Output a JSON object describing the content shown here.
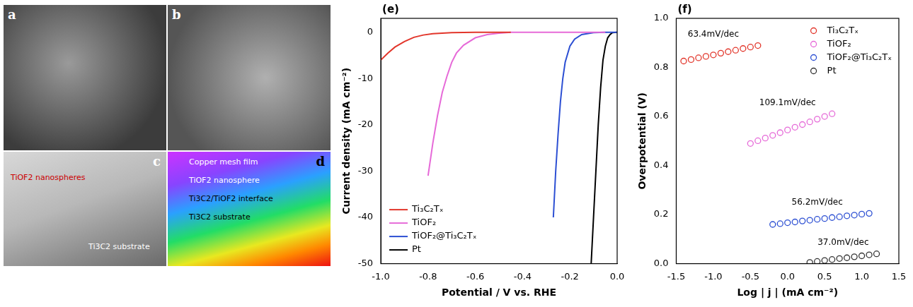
{
  "images": [
    {
      "letter": "a",
      "labels": []
    },
    {
      "letter": "b",
      "labels": []
    },
    {
      "letter": "c",
      "labels": [
        "TiOF2 nanospheres",
        "Ti3C2 substrate"
      ]
    },
    {
      "letter": "d",
      "labels": [
        "Copper mesh film",
        "TiOF2 nanosphere",
        "Ti3C2/TiOF2 interface",
        "Ti3C2 substrate"
      ]
    }
  ],
  "chart_data": [
    {
      "type": "line",
      "title": "(e)",
      "x_label": "Potential / V vs. RHE",
      "y_label": "Current density (mA cm⁻²)",
      "xlim": [
        -1.0,
        0.0
      ],
      "xticks": [
        {
          "value": -1.0,
          "label": "-1.0"
        },
        {
          "value": -0.8,
          "label": "-0.8"
        },
        {
          "value": -0.6,
          "label": "-0.6"
        },
        {
          "value": -0.4,
          "label": "-0.4"
        },
        {
          "value": -0.2,
          "label": "-0.2"
        },
        {
          "value": 0.0,
          "label": "0.0"
        }
      ],
      "ylim": [
        -50,
        3
      ],
      "yticks": [
        -50,
        -40,
        -30,
        -20,
        -10,
        0
      ],
      "grid": false,
      "legend": "lower left",
      "series": [
        {
          "name": "Ti₃C₂Tₓ",
          "color": "#e2362b",
          "line_style": "solid",
          "x": [
            -1.0,
            -0.97,
            -0.94,
            -0.9,
            -0.86,
            -0.82,
            -0.78,
            -0.7,
            -0.6,
            -0.45
          ],
          "values": [
            -6,
            -4.5,
            -3.2,
            -2,
            -1.1,
            -0.6,
            -0.3,
            -0.1,
            0,
            0
          ]
        },
        {
          "name": "TiOF₂",
          "color": "#e66ad8",
          "line_style": "solid",
          "x": [
            -0.8,
            -0.78,
            -0.76,
            -0.74,
            -0.72,
            -0.7,
            -0.68,
            -0.65,
            -0.6,
            -0.55,
            -0.5,
            -0.45,
            -0.2,
            -0.05
          ],
          "values": [
            -31,
            -24,
            -18,
            -13,
            -9.5,
            -6.5,
            -4.5,
            -2.8,
            -1.2,
            -0.5,
            -0.2,
            0,
            0,
            0
          ]
        },
        {
          "name": "TiOF₂@Ti₃C₂Tₓ",
          "color": "#2c4fd3",
          "line_style": "solid",
          "x": [
            -0.27,
            -0.26,
            -0.25,
            -0.24,
            -0.23,
            -0.22,
            -0.2,
            -0.18,
            -0.15,
            -0.1,
            -0.05,
            0.0
          ],
          "values": [
            -40,
            -30,
            -22,
            -15,
            -10,
            -6.5,
            -3,
            -1.5,
            -0.5,
            -0.1,
            0,
            0
          ]
        },
        {
          "name": "Pt",
          "color": "#000000",
          "line_style": "solid",
          "x": [
            -0.11,
            -0.1,
            -0.09,
            -0.08,
            -0.07,
            -0.06,
            -0.05,
            -0.04,
            -0.03,
            -0.02,
            0.0
          ],
          "values": [
            -50,
            -40,
            -30,
            -20,
            -12,
            -6,
            -3,
            -1.2,
            -0.5,
            -0.1,
            0
          ]
        }
      ]
    },
    {
      "type": "scatter",
      "title": "(f)",
      "x_label": "Log | j | (mA cm⁻²)",
      "y_label": "Overpotential (V)",
      "xlim": [
        -1.5,
        1.5
      ],
      "xticks": [
        {
          "value": -1.5,
          "label": "-1.5"
        },
        {
          "value": -1.0,
          "label": "-1.0"
        },
        {
          "value": -0.5,
          "label": "-0.5"
        },
        {
          "value": 0.0,
          "label": "0.0"
        },
        {
          "value": 0.5,
          "label": "0.5"
        },
        {
          "value": 1.0,
          "label": "1.0"
        },
        {
          "value": 1.5,
          "label": "1.5"
        }
      ],
      "ylim": [
        0.0,
        1.0
      ],
      "yticks": [
        {
          "value": 0.0,
          "label": "0.0"
        },
        {
          "value": 0.2,
          "label": "0.2"
        },
        {
          "value": 0.4,
          "label": "0.4"
        },
        {
          "value": 0.6,
          "label": "0.6"
        },
        {
          "value": 0.8,
          "label": "0.8"
        },
        {
          "value": 1.0,
          "label": "1.0"
        }
      ],
      "grid": false,
      "legend": "upper right",
      "annotations": [
        {
          "text": "63.4mV/dec",
          "x": -1.0,
          "y": 0.935
        },
        {
          "text": "109.1mV/dec",
          "x": 0.0,
          "y": 0.655
        },
        {
          "text": "56.2mV/dec",
          "x": 0.4,
          "y": 0.25
        },
        {
          "text": "37.0mV/dec",
          "x": 0.75,
          "y": 0.085
        }
      ],
      "series": [
        {
          "name": "Ti₃C₂Tₓ",
          "color": "#e2362b",
          "marker": "circle",
          "x": [
            -1.4,
            -1.3,
            -1.2,
            -1.1,
            -1.0,
            -0.9,
            -0.8,
            -0.7,
            -0.6,
            -0.5,
            -0.4
          ],
          "values": [
            0.826,
            0.832,
            0.839,
            0.845,
            0.851,
            0.858,
            0.864,
            0.87,
            0.877,
            0.883,
            0.889
          ]
        },
        {
          "name": "TiOF₂",
          "color": "#e66ad8",
          "marker": "circle",
          "x": [
            -0.5,
            -0.4,
            -0.3,
            -0.2,
            -0.1,
            0.0,
            0.1,
            0.2,
            0.3,
            0.4,
            0.5,
            0.6
          ],
          "values": [
            0.49,
            0.501,
            0.512,
            0.523,
            0.534,
            0.545,
            0.556,
            0.567,
            0.578,
            0.589,
            0.6,
            0.611
          ]
        },
        {
          "name": "TiOF₂@Ti₃C₂Tₓ",
          "color": "#2c4fd3",
          "marker": "circle",
          "x": [
            -0.2,
            -0.1,
            0.0,
            0.1,
            0.2,
            0.3,
            0.4,
            0.5,
            0.6,
            0.7,
            0.8,
            0.9,
            1.0,
            1.1
          ],
          "values": [
            0.16,
            0.163,
            0.167,
            0.17,
            0.174,
            0.177,
            0.181,
            0.184,
            0.188,
            0.191,
            0.195,
            0.198,
            0.202,
            0.205
          ]
        },
        {
          "name": "Pt",
          "color": "#333333",
          "marker": "circle",
          "x": [
            0.3,
            0.4,
            0.5,
            0.6,
            0.7,
            0.8,
            0.9,
            1.0,
            1.1,
            1.2
          ],
          "values": [
            0.005,
            0.009,
            0.013,
            0.017,
            0.021,
            0.024,
            0.028,
            0.032,
            0.036,
            0.04
          ]
        }
      ]
    }
  ]
}
